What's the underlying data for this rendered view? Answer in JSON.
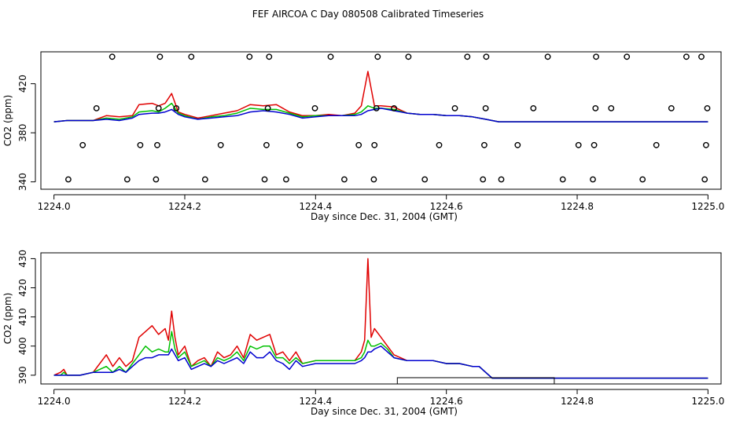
{
  "figure_title": "FEF AIRCOA C  Day 080508  Calibrated Timeseries",
  "colors": {
    "red": "#e00000",
    "green": "#00c000",
    "blue": "#0000d0",
    "axis": "#000000"
  },
  "chart_data": [
    {
      "type": "line",
      "panel": "top",
      "title": "",
      "xlabel": "Day since Dec. 31, 2004 (GMT)",
      "ylabel": "CO2 (ppm)",
      "xlim": [
        1223.98,
        1225.02
      ],
      "ylim": [
        334,
        446
      ],
      "xticks": [
        1224.0,
        1224.2,
        1224.4,
        1224.6,
        1224.8,
        1225.0
      ],
      "xtick_labels": [
        "1224.0",
        "1224.2",
        "1224.4",
        "1224.6",
        "1224.8",
        "1225.0"
      ],
      "yticks": [
        340,
        380,
        420
      ],
      "ytick_labels": [
        "340",
        "380",
        "420"
      ],
      "series": [
        {
          "name": "red",
          "color": "#e00000",
          "x": [
            1224.0,
            1224.02,
            1224.04,
            1224.06,
            1224.08,
            1224.1,
            1224.12,
            1224.13,
            1224.15,
            1224.16,
            1224.17,
            1224.18,
            1224.19,
            1224.2,
            1224.22,
            1224.24,
            1224.26,
            1224.28,
            1224.3,
            1224.32,
            1224.34,
            1224.36,
            1224.38,
            1224.4,
            1224.42,
            1224.44,
            1224.46,
            1224.47,
            1224.48,
            1224.49,
            1224.5,
            1224.52,
            1224.54,
            1224.56,
            1224.58,
            1224.6,
            1224.62,
            1224.64,
            1224.66,
            1224.68,
            1224.7,
            1224.75,
            1224.8,
            1224.85,
            1224.9,
            1224.95,
            1225.0
          ],
          "y": [
            389,
            390,
            390,
            390,
            394,
            393,
            394,
            403,
            404,
            402,
            404,
            412,
            397,
            395,
            392,
            394,
            396,
            398,
            403,
            402,
            403,
            397,
            394,
            394,
            395,
            394,
            396,
            402,
            430,
            402,
            402,
            401,
            396,
            395,
            395,
            394,
            394,
            393,
            391,
            389,
            389,
            389,
            389,
            389,
            389,
            389,
            389
          ]
        },
        {
          "name": "green",
          "color": "#00c000",
          "x": [
            1224.0,
            1224.02,
            1224.04,
            1224.06,
            1224.08,
            1224.1,
            1224.12,
            1224.13,
            1224.15,
            1224.16,
            1224.17,
            1224.18,
            1224.19,
            1224.2,
            1224.22,
            1224.24,
            1224.26,
            1224.28,
            1224.3,
            1224.32,
            1224.34,
            1224.36,
            1224.38,
            1224.4,
            1224.42,
            1224.44,
            1224.46,
            1224.47,
            1224.48,
            1224.49,
            1224.5,
            1224.52,
            1224.54,
            1224.56,
            1224.58,
            1224.6,
            1224.62,
            1224.64,
            1224.66,
            1224.68,
            1224.7,
            1224.75,
            1224.8,
            1224.85,
            1224.9,
            1224.95,
            1225.0
          ],
          "y": [
            389,
            390,
            390,
            390,
            392,
            391,
            393,
            397,
            398,
            397,
            400,
            404,
            396,
            394,
            391,
            393,
            394,
            396,
            400,
            399,
            399,
            396,
            393,
            394,
            394,
            394,
            395,
            397,
            402,
            400,
            400,
            399,
            396,
            395,
            395,
            394,
            394,
            393,
            391,
            389,
            389,
            389,
            389,
            389,
            389,
            389,
            389
          ]
        },
        {
          "name": "blue",
          "color": "#0000d0",
          "x": [
            1224.0,
            1224.02,
            1224.04,
            1224.06,
            1224.08,
            1224.1,
            1224.12,
            1224.13,
            1224.15,
            1224.16,
            1224.17,
            1224.18,
            1224.19,
            1224.2,
            1224.22,
            1224.24,
            1224.26,
            1224.28,
            1224.3,
            1224.32,
            1224.34,
            1224.36,
            1224.38,
            1224.4,
            1224.42,
            1224.44,
            1224.46,
            1224.47,
            1224.48,
            1224.49,
            1224.5,
            1224.52,
            1224.54,
            1224.56,
            1224.58,
            1224.6,
            1224.62,
            1224.64,
            1224.66,
            1224.68,
            1224.7,
            1224.75,
            1224.8,
            1224.85,
            1224.9,
            1224.95,
            1225.0
          ],
          "y": [
            389,
            390,
            390,
            390,
            391,
            390,
            392,
            395,
            396,
            396,
            397,
            399,
            395,
            393,
            391,
            392,
            393,
            394,
            397,
            398,
            397,
            395,
            392,
            393,
            394,
            394,
            394,
            395,
            398,
            399,
            400,
            398,
            396,
            395,
            395,
            394,
            394,
            393,
            391,
            389,
            389,
            389,
            389,
            389,
            389,
            389,
            389
          ]
        }
      ],
      "markers": {
        "name": "calibration-points",
        "x": [
          1224.022,
          1224.044,
          1224.065,
          1224.089,
          1224.112,
          1224.132,
          1224.156,
          1224.158,
          1224.16,
          1224.162,
          1224.187,
          1224.21,
          1224.231,
          1224.255,
          1224.299,
          1224.322,
          1224.325,
          1224.327,
          1224.329,
          1224.355,
          1224.376,
          1224.399,
          1224.423,
          1224.444,
          1224.466,
          1224.489,
          1224.49,
          1224.493,
          1224.495,
          1224.52,
          1224.542,
          1224.567,
          1224.589,
          1224.613,
          1224.632,
          1224.656,
          1224.658,
          1224.66,
          1224.661,
          1224.684,
          1224.709,
          1224.733,
          1224.755,
          1224.778,
          1224.802,
          1224.824,
          1224.826,
          1224.828,
          1224.829,
          1224.852,
          1224.876,
          1224.9,
          1224.921,
          1224.944,
          1224.967,
          1224.99,
          1224.995,
          1224.997,
          1224.999
        ],
        "y": [
          342,
          370,
          400,
          442,
          342,
          370,
          342,
          370,
          400,
          442,
          400,
          442,
          342,
          370,
          442,
          342,
          370,
          400,
          442,
          342,
          370,
          400,
          442,
          342,
          370,
          342,
          370,
          400,
          442,
          400,
          442,
          342,
          370,
          400,
          442,
          342,
          370,
          400,
          442,
          342,
          370,
          400,
          442,
          342,
          370,
          342,
          370,
          400,
          442,
          400,
          442,
          342,
          370,
          400,
          442,
          442,
          342,
          370,
          400
        ]
      }
    },
    {
      "type": "line",
      "panel": "bottom",
      "title": "",
      "xlabel": "Day since Dec. 31, 2004 (GMT)",
      "ylabel": "CO2 (ppm)",
      "xlim": [
        1223.98,
        1225.02
      ],
      "ylim": [
        387,
        432
      ],
      "xticks": [
        1224.0,
        1224.2,
        1224.4,
        1224.6,
        1224.8,
        1225.0
      ],
      "xtick_labels": [
        "1224.0",
        "1224.2",
        "1224.4",
        "1224.6",
        "1224.8",
        "1225.0"
      ],
      "yticks": [
        390,
        400,
        410,
        420,
        430
      ],
      "ytick_labels": [
        "390",
        "400",
        "410",
        "420",
        "430"
      ],
      "series": [
        {
          "name": "red",
          "color": "#e00000",
          "x": [
            1224.0,
            1224.01,
            1224.015,
            1224.02,
            1224.04,
            1224.06,
            1224.07,
            1224.08,
            1224.09,
            1224.1,
            1224.11,
            1224.12,
            1224.13,
            1224.14,
            1224.15,
            1224.16,
            1224.17,
            1224.175,
            1224.18,
            1224.185,
            1224.19,
            1224.2,
            1224.21,
            1224.22,
            1224.23,
            1224.24,
            1224.25,
            1224.26,
            1224.27,
            1224.28,
            1224.29,
            1224.3,
            1224.31,
            1224.32,
            1224.33,
            1224.34,
            1224.35,
            1224.36,
            1224.37,
            1224.38,
            1224.4,
            1224.42,
            1224.44,
            1224.46,
            1224.47,
            1224.475,
            1224.48,
            1224.485,
            1224.49,
            1224.5,
            1224.51,
            1224.52,
            1224.54,
            1224.56,
            1224.58,
            1224.6,
            1224.62,
            1224.64,
            1224.65,
            1224.66,
            1224.67,
            1224.7,
            1224.75,
            1224.8,
            1224.85,
            1224.9,
            1224.95,
            1225.0
          ],
          "y": [
            390,
            391,
            392,
            390,
            390,
            391,
            394,
            397,
            393,
            396,
            393,
            395,
            403,
            405,
            407,
            404,
            406,
            402,
            412,
            403,
            397,
            400,
            393,
            395,
            396,
            393,
            398,
            396,
            397,
            400,
            396,
            404,
            402,
            403,
            404,
            397,
            398,
            395,
            398,
            394,
            395,
            395,
            395,
            395,
            398,
            402,
            430,
            403,
            406,
            403,
            400,
            397,
            395,
            395,
            395,
            394,
            394,
            393,
            393,
            391,
            389,
            389,
            389,
            389,
            389,
            389,
            389,
            389
          ]
        },
        {
          "name": "green",
          "color": "#00c000",
          "x": [
            1224.0,
            1224.01,
            1224.015,
            1224.02,
            1224.04,
            1224.06,
            1224.07,
            1224.08,
            1224.09,
            1224.1,
            1224.11,
            1224.12,
            1224.13,
            1224.14,
            1224.15,
            1224.16,
            1224.17,
            1224.175,
            1224.18,
            1224.185,
            1224.19,
            1224.2,
            1224.21,
            1224.22,
            1224.23,
            1224.24,
            1224.25,
            1224.26,
            1224.27,
            1224.28,
            1224.29,
            1224.3,
            1224.31,
            1224.32,
            1224.33,
            1224.34,
            1224.35,
            1224.36,
            1224.37,
            1224.38,
            1224.4,
            1224.42,
            1224.44,
            1224.46,
            1224.47,
            1224.475,
            1224.48,
            1224.485,
            1224.49,
            1224.5,
            1224.51,
            1224.52,
            1224.54,
            1224.56,
            1224.58,
            1224.6,
            1224.62,
            1224.64,
            1224.65,
            1224.66,
            1224.67,
            1224.7,
            1224.75,
            1224.8,
            1224.85,
            1224.9,
            1224.95,
            1225.0
          ],
          "y": [
            390,
            390,
            391,
            390,
            390,
            391,
            392,
            393,
            391,
            393,
            391,
            394,
            397,
            400,
            398,
            399,
            398,
            398,
            405,
            399,
            396,
            398,
            393,
            394,
            395,
            393,
            396,
            395,
            396,
            398,
            395,
            400,
            399,
            400,
            400,
            396,
            396,
            394,
            396,
            394,
            395,
            395,
            395,
            395,
            396,
            398,
            402,
            400,
            400,
            401,
            399,
            396,
            395,
            395,
            395,
            394,
            394,
            393,
            393,
            391,
            389,
            389,
            389,
            389,
            389,
            389,
            389,
            389
          ]
        },
        {
          "name": "blue",
          "color": "#0000d0",
          "x": [
            1224.0,
            1224.01,
            1224.015,
            1224.02,
            1224.04,
            1224.06,
            1224.07,
            1224.08,
            1224.09,
            1224.1,
            1224.11,
            1224.12,
            1224.13,
            1224.14,
            1224.15,
            1224.16,
            1224.17,
            1224.175,
            1224.18,
            1224.185,
            1224.19,
            1224.2,
            1224.21,
            1224.22,
            1224.23,
            1224.24,
            1224.25,
            1224.26,
            1224.27,
            1224.28,
            1224.29,
            1224.3,
            1224.31,
            1224.32,
            1224.33,
            1224.34,
            1224.35,
            1224.36,
            1224.37,
            1224.38,
            1224.4,
            1224.42,
            1224.44,
            1224.46,
            1224.47,
            1224.475,
            1224.48,
            1224.485,
            1224.49,
            1224.5,
            1224.51,
            1224.52,
            1224.54,
            1224.56,
            1224.58,
            1224.6,
            1224.62,
            1224.64,
            1224.65,
            1224.66,
            1224.67,
            1224.7,
            1224.75,
            1224.8,
            1224.85,
            1224.9,
            1224.95,
            1225.0
          ],
          "y": [
            390,
            390,
            390,
            390,
            390,
            391,
            391,
            391,
            391,
            392,
            391,
            393,
            395,
            396,
            396,
            397,
            397,
            397,
            399,
            397,
            395,
            396,
            392,
            393,
            394,
            393,
            395,
            394,
            395,
            396,
            394,
            398,
            396,
            396,
            398,
            395,
            394,
            392,
            395,
            393,
            394,
            394,
            394,
            394,
            395,
            396,
            398,
            398,
            399,
            400,
            398,
            396,
            395,
            395,
            395,
            394,
            394,
            393,
            393,
            391,
            389,
            389,
            389,
            389,
            389,
            389,
            389,
            389
          ]
        }
      ],
      "highlight_range": {
        "name": "selected-window",
        "x": [
          1224.525,
          1224.765
        ]
      }
    }
  ]
}
